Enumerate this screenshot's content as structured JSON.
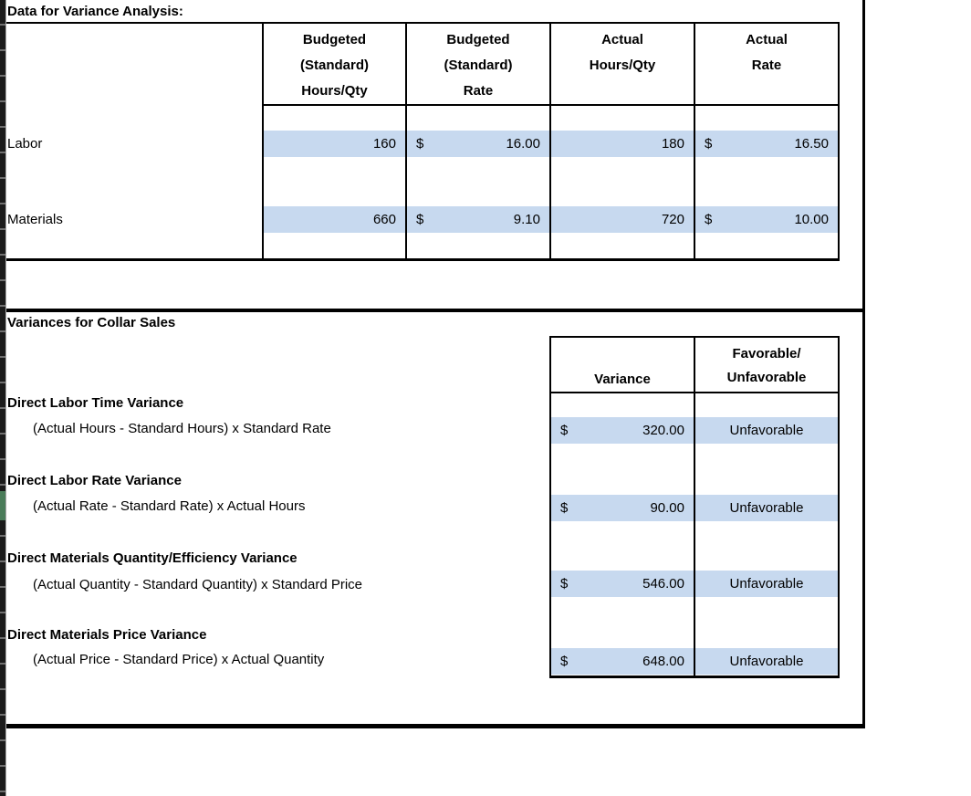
{
  "colors": {
    "highlight": "#c7d9ef",
    "selection_green": "#4a7c59",
    "border": "#000000"
  },
  "data_section": {
    "title": "Data for Variance Analysis:",
    "columns": [
      {
        "lines": [
          "Budgeted",
          "(Standard)",
          "Hours/Qty"
        ]
      },
      {
        "lines": [
          "Budgeted",
          "(Standard)",
          "Rate"
        ]
      },
      {
        "lines": [
          "Actual",
          "Hours/Qty"
        ]
      },
      {
        "lines": [
          "Actual",
          "Rate"
        ]
      }
    ],
    "rows": [
      {
        "label": "Labor",
        "budgeted_qty": "160",
        "budgeted_rate_currency": "$",
        "budgeted_rate": "16.00",
        "actual_qty": "180",
        "actual_rate_currency": "$",
        "actual_rate": "16.50"
      },
      {
        "label": "Materials",
        "budgeted_qty": "660",
        "budgeted_rate_currency": "$",
        "budgeted_rate": "9.10",
        "actual_qty": "720",
        "actual_rate_currency": "$",
        "actual_rate": "10.00"
      }
    ]
  },
  "variance_section": {
    "title": "Variances for Collar Sales",
    "header": {
      "variance": "Variance",
      "favorable_line1": "Favorable/",
      "favorable_line2": "Unfavorable"
    },
    "items": [
      {
        "name": "Direct Labor Time Variance",
        "formula": "(Actual Hours - Standard Hours) x Standard Rate",
        "currency": "$",
        "amount": "320.00",
        "status": "Unfavorable"
      },
      {
        "name": "Direct Labor Rate Variance",
        "formula": "(Actual Rate - Standard Rate) x Actual Hours",
        "currency": "$",
        "amount": "90.00",
        "status": "Unfavorable"
      },
      {
        "name": "Direct Materials Quantity/Efficiency Variance",
        "formula": "(Actual Quantity - Standard Quantity) x Standard Price",
        "currency": "$",
        "amount": "546.00",
        "status": "Unfavorable"
      },
      {
        "name": "Direct Materials Price Variance",
        "formula": "(Actual Price - Standard Price) x Actual Quantity",
        "currency": "$",
        "amount": "648.00",
        "status": "Unfavorable"
      }
    ]
  }
}
